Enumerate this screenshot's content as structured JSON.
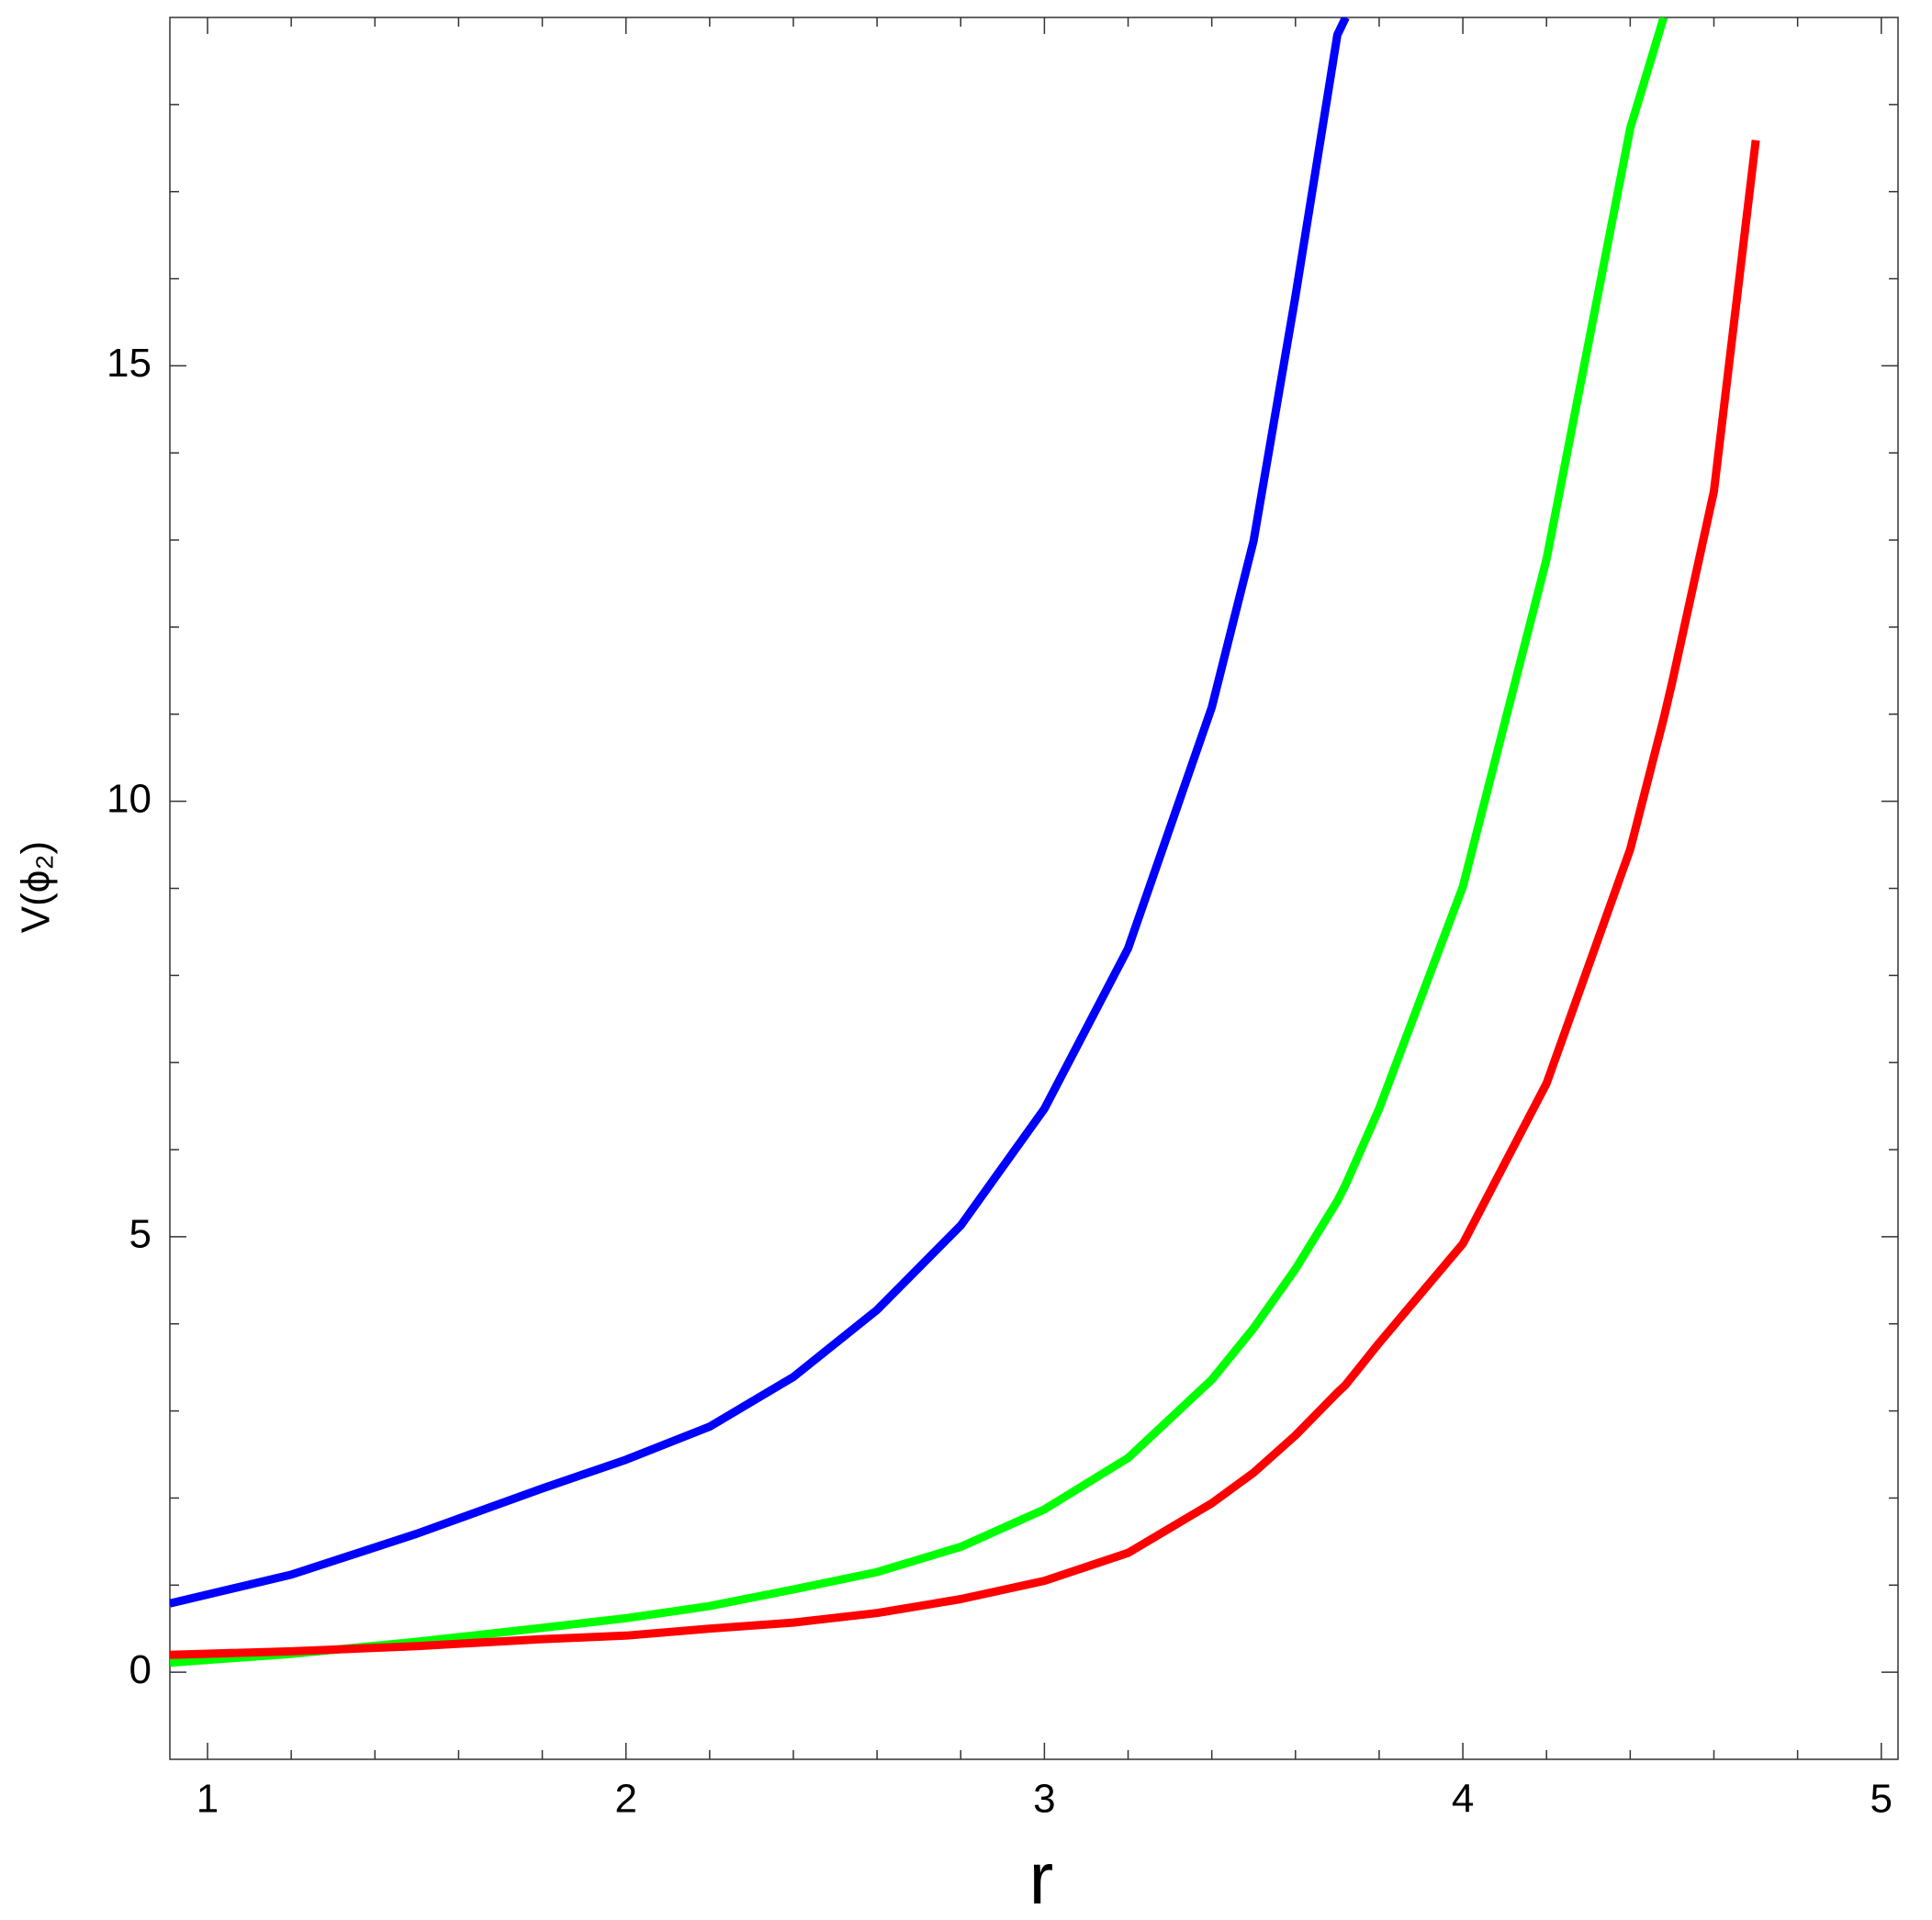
{
  "chart_data": {
    "type": "line",
    "xlabel": "r",
    "ylabel": "V(ϕ₂)",
    "x": [
      0.91,
      1.2,
      1.5,
      1.8,
      2.0,
      2.2,
      2.4,
      2.6,
      2.8,
      3.0,
      3.2,
      3.4,
      3.5,
      3.6,
      3.7,
      3.72,
      3.8,
      4.0,
      4.2,
      4.4,
      4.48,
      4.5,
      4.6,
      4.7
    ],
    "series": [
      {
        "color": "#0000ff",
        "values": [
          0.79,
          1.12,
          1.59,
          2.11,
          2.44,
          2.82,
          3.39,
          4.16,
          5.13,
          6.47,
          8.31,
          11.08,
          12.99,
          15.8,
          18.8,
          19.0,
          null,
          null,
          null,
          null,
          null,
          null,
          null,
          null
        ]
      },
      {
        "color": "#00ff00",
        "values": [
          0.11,
          0.21,
          0.35,
          0.51,
          0.62,
          0.76,
          0.95,
          1.15,
          1.44,
          1.87,
          2.46,
          3.36,
          3.95,
          4.63,
          5.41,
          5.6,
          6.47,
          9.02,
          12.78,
          17.73,
          19.0,
          null,
          null,
          null
        ]
      },
      {
        "color": "#ff0000",
        "values": [
          0.2,
          0.24,
          0.3,
          0.38,
          0.42,
          0.5,
          0.57,
          0.68,
          0.84,
          1.05,
          1.37,
          1.94,
          2.29,
          2.72,
          3.21,
          3.3,
          3.78,
          4.92,
          6.76,
          9.45,
          10.95,
          11.36,
          13.56,
          17.59
        ]
      }
    ],
    "xlim": [
      0.91,
      5.04
    ],
    "ylim": [
      -1,
      19
    ],
    "xticks": [
      1,
      2,
      3,
      4,
      5
    ],
    "yticks": [
      0,
      5,
      10,
      15
    ],
    "xticks_minor": [
      1.2,
      1.4,
      1.6,
      1.8,
      2.2,
      2.4,
      2.6,
      2.8,
      3.2,
      3.4,
      3.6,
      3.8,
      4.2,
      4.4,
      4.6,
      4.8
    ],
    "yticks_minor": [
      1,
      2,
      3,
      4,
      6,
      7,
      8,
      9,
      11,
      12,
      13,
      14,
      16,
      17,
      18
    ],
    "grid": false
  }
}
